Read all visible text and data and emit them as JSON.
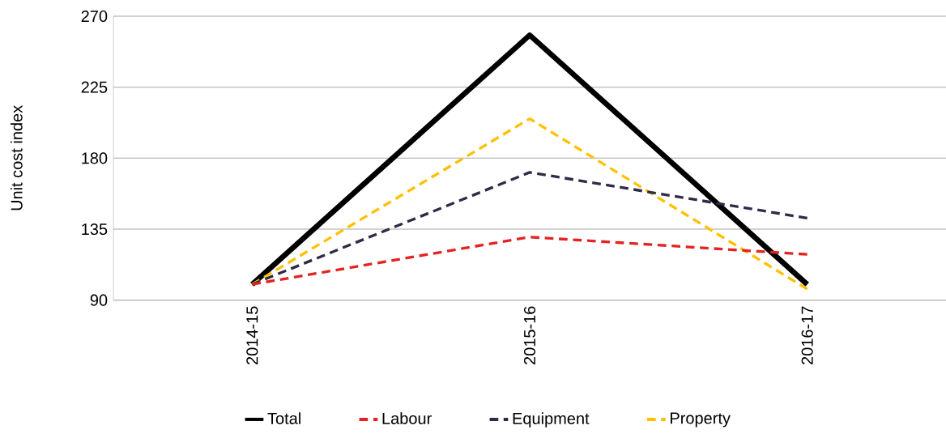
{
  "chart_data": {
    "type": "line",
    "ylabel": "Unit cost index",
    "categories": [
      "2014-15",
      "2015-16",
      "2016-17"
    ],
    "series": [
      {
        "name": "Total",
        "color": "#000000",
        "line_style": "solid",
        "values": [
          100,
          258,
          100
        ]
      },
      {
        "name": "Labour",
        "color": "#e32322",
        "line_style": "dashed",
        "values": [
          100,
          130,
          119
        ]
      },
      {
        "name": "Equipment",
        "color": "#2e2b45",
        "line_style": "dashed",
        "values": [
          100,
          171,
          142
        ]
      },
      {
        "name": "Property",
        "color": "#ffc000",
        "line_style": "dashed",
        "values": [
          100,
          205,
          97
        ]
      }
    ],
    "ylim": [
      90,
      270
    ],
    "yticks": [
      90,
      135,
      180,
      225,
      270
    ],
    "grid": "y",
    "legend": "bottom",
    "marker": "none"
  }
}
